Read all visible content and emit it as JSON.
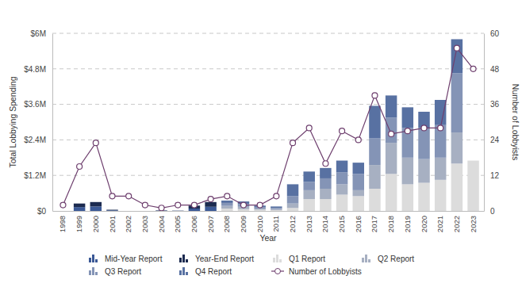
{
  "chart_data": {
    "type": "bar",
    "stacked": true,
    "grid": true,
    "legend": "bottom",
    "x_label": "Year",
    "y_label": "Total Lobbying Spending",
    "y2_label": "Number of Lobbyists",
    "categories": [
      "1998",
      "1999",
      "2000",
      "2001",
      "2002",
      "2003",
      "2004",
      "2005",
      "2006",
      "2007",
      "2008",
      "2009",
      "2010",
      "2011",
      "2012",
      "2013",
      "2014",
      "2015",
      "2016",
      "2017",
      "2018",
      "2019",
      "2020",
      "2021",
      "2022",
      "2023"
    ],
    "ylim": [
      0,
      6000000
    ],
    "yticks": [
      {
        "value": 0,
        "label": "$0"
      },
      {
        "value": 1200000,
        "label": "$1.2M"
      },
      {
        "value": 2400000,
        "label": "$2.4M"
      },
      {
        "value": 3600000,
        "label": "$3.6M"
      },
      {
        "value": 4800000,
        "label": "$4.8M"
      },
      {
        "value": 6000000,
        "label": "$6M"
      }
    ],
    "y2lim": [
      0,
      60
    ],
    "y2ticks": [
      0,
      12,
      24,
      36,
      48,
      60
    ],
    "series": [
      {
        "name": "Mid-Year Report",
        "type": "bar",
        "color": "#3b5996",
        "values": [
          0,
          130000,
          150000,
          20000,
          0,
          0,
          10000,
          5000,
          80000,
          140000,
          null,
          null,
          null,
          null,
          null,
          null,
          null,
          null,
          null,
          null,
          null,
          null,
          null,
          null,
          null,
          null
        ]
      },
      {
        "name": "Year-End Report",
        "type": "bar",
        "color": "#1c2b50",
        "values": [
          0,
          120000,
          150000,
          20000,
          0,
          0,
          10000,
          5000,
          100000,
          160000,
          null,
          null,
          null,
          null,
          null,
          null,
          null,
          null,
          null,
          null,
          null,
          null,
          null,
          null,
          null,
          null
        ]
      },
      {
        "name": "Q1 Report",
        "type": "bar",
        "color": "#dcdcdc",
        "values": [
          null,
          null,
          null,
          null,
          null,
          null,
          null,
          null,
          null,
          null,
          80000,
          60000,
          40000,
          30000,
          100000,
          400000,
          400000,
          550000,
          500000,
          750000,
          1250000,
          900000,
          950000,
          1050000,
          1600000,
          1700000
        ]
      },
      {
        "name": "Q2 Report",
        "type": "bar",
        "color": "#a7b0c2",
        "values": [
          null,
          null,
          null,
          null,
          null,
          null,
          null,
          null,
          null,
          null,
          90000,
          80000,
          40000,
          30000,
          150000,
          300000,
          350000,
          350000,
          200000,
          800000,
          1050000,
          900000,
          800000,
          750000,
          1050000,
          null
        ]
      },
      {
        "name": "Q3 Report",
        "type": "bar",
        "color": "#8494b6",
        "values": [
          null,
          null,
          null,
          null,
          null,
          null,
          null,
          null,
          null,
          null,
          100000,
          90000,
          50000,
          40000,
          250000,
          280000,
          350000,
          400000,
          550000,
          900000,
          850000,
          1000000,
          1050000,
          1100000,
          2000000,
          null
        ]
      },
      {
        "name": "Q4 Report",
        "type": "bar",
        "color": "#5871a2",
        "values": [
          null,
          null,
          null,
          null,
          null,
          null,
          null,
          null,
          null,
          null,
          80000,
          90000,
          50000,
          50000,
          400000,
          350000,
          350000,
          400000,
          380000,
          1100000,
          750000,
          700000,
          550000,
          850000,
          1150000,
          null
        ]
      },
      {
        "name": "Number of Lobbyists",
        "type": "line",
        "axis": "y2",
        "color": "#6e3f6e",
        "marker": "circle",
        "values": [
          2,
          15,
          23,
          5,
          5,
          2,
          1,
          2,
          2,
          4,
          5,
          2,
          2,
          5,
          23,
          28,
          16,
          27,
          24,
          39,
          26,
          27,
          28,
          28,
          55,
          48
        ]
      }
    ]
  }
}
